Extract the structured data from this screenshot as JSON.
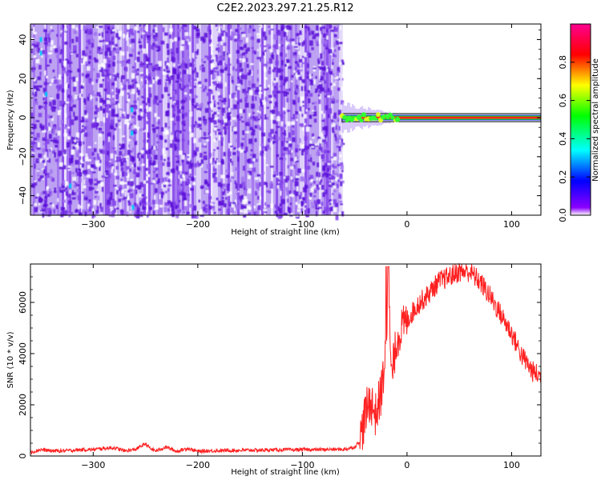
{
  "title": "C2E2.2023.297.21.25.R12",
  "chart_data": [
    {
      "type": "heatmap",
      "xlabel": "Height of straight line (km)",
      "ylabel": "Frequency (Hz)",
      "xlim": [
        -360,
        128
      ],
      "ylim": [
        -50,
        48
      ],
      "xticks": [
        -300,
        -200,
        -100,
        0,
        100
      ],
      "yticks": [
        -40,
        -20,
        0,
        20,
        40
      ],
      "noise_region_x": [
        -360,
        -62
      ],
      "signal_line_x": [
        -62,
        128
      ],
      "signal_frequency": 0,
      "colorbar": {
        "label": "Normalized spectral amplitude",
        "range": [
          0.0,
          1.0
        ],
        "ticks": [
          "0.0",
          "0.2",
          "0.4",
          "0.6",
          "0.8"
        ],
        "colors": [
          "#ffffff",
          "#8b00ff",
          "#0000ff",
          "#00ffff",
          "#00ff00",
          "#ffff00",
          "#ff0000",
          "#ff0090"
        ]
      }
    },
    {
      "type": "line",
      "xlabel": "Height of straight line (km)",
      "ylabel": "SNR (10 * v/v)",
      "xlim": [
        -360,
        128
      ],
      "ylim": [
        0,
        7500
      ],
      "xticks": [
        -300,
        -200,
        -100,
        0,
        100
      ],
      "yticks": [
        0,
        2000,
        4000,
        6000
      ],
      "color": "#ff2020",
      "series": [
        {
          "x": [
            -360,
            -350,
            -340,
            -330,
            -320,
            -310,
            -300,
            -290,
            -280,
            -270,
            -260,
            -250,
            -245,
            -240,
            -230,
            -220,
            -210,
            -200,
            -190,
            -180,
            -170,
            -160,
            -150,
            -140,
            -130,
            -120,
            -110,
            -100,
            -90,
            -80,
            -70,
            -60,
            -50,
            -45,
            -40,
            -35,
            -30,
            -25,
            -20,
            -18,
            -15,
            -10,
            -5,
            0,
            10,
            20,
            30,
            40,
            50,
            60,
            70,
            80,
            90,
            100,
            110,
            120,
            128
          ],
          "values": [
            150,
            250,
            200,
            200,
            220,
            250,
            250,
            300,
            320,
            200,
            250,
            480,
            280,
            200,
            350,
            180,
            300,
            180,
            200,
            210,
            220,
            220,
            230,
            230,
            240,
            240,
            240,
            250,
            250,
            250,
            260,
            260,
            350,
            600,
            1600,
            2200,
            1600,
            2400,
            4000,
            7000,
            3000,
            4500,
            5000,
            5300,
            5900,
            6300,
            6800,
            7000,
            7200,
            7200,
            6800,
            6200,
            5500,
            4800,
            3900,
            3300,
            3100
          ]
        }
      ]
    }
  ]
}
